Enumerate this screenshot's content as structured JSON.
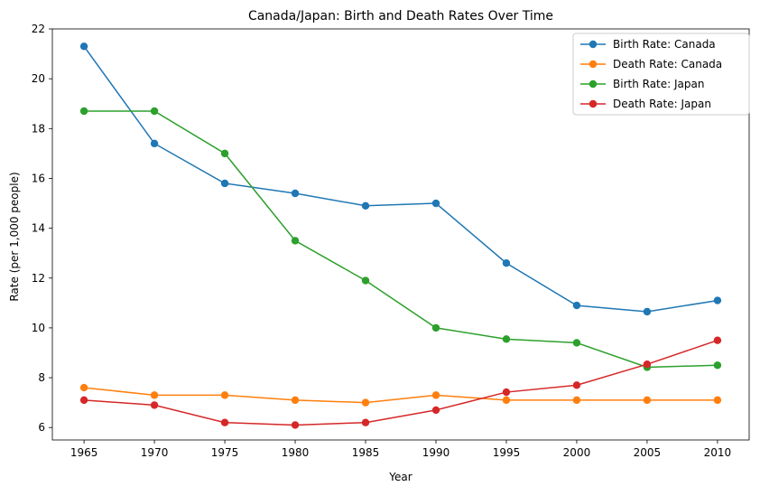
{
  "chart_data": {
    "type": "line",
    "title": "Canada/Japan: Birth and Death Rates Over Time",
    "xlabel": "Year",
    "ylabel": "Rate (per 1,000 people)",
    "x": [
      1965,
      1970,
      1975,
      1980,
      1985,
      1990,
      1995,
      2000,
      2005,
      2010
    ],
    "xlim": [
      1962.75,
      2012.25
    ],
    "ylim": [
      5.5,
      22.0
    ],
    "xticks": [
      1965,
      1970,
      1975,
      1980,
      1985,
      1990,
      1995,
      2000,
      2005,
      2010
    ],
    "yticks": [
      6,
      8,
      10,
      12,
      14,
      16,
      18,
      20,
      22
    ],
    "grid": false,
    "legend_position": "top-right",
    "series": [
      {
        "name": "Birth Rate: Canada",
        "color": "#1f77b4",
        "values": [
          21.3,
          17.4,
          15.8,
          15.4,
          14.9,
          15.0,
          12.6,
          10.9,
          10.65,
          11.1
        ]
      },
      {
        "name": "Death Rate: Canada",
        "color": "#ff7f0e",
        "values": [
          7.6,
          7.3,
          7.3,
          7.1,
          7.0,
          7.3,
          7.1,
          7.1,
          7.1,
          7.1
        ]
      },
      {
        "name": "Birth Rate: Japan",
        "color": "#2ca02c",
        "values": [
          18.7,
          18.7,
          17.0,
          13.5,
          11.9,
          10.0,
          9.55,
          9.4,
          8.42,
          8.5
        ]
      },
      {
        "name": "Death Rate: Japan",
        "color": "#d62728",
        "values": [
          7.1,
          6.9,
          6.2,
          6.1,
          6.2,
          6.7,
          7.42,
          7.7,
          8.54,
          9.5
        ]
      }
    ]
  }
}
